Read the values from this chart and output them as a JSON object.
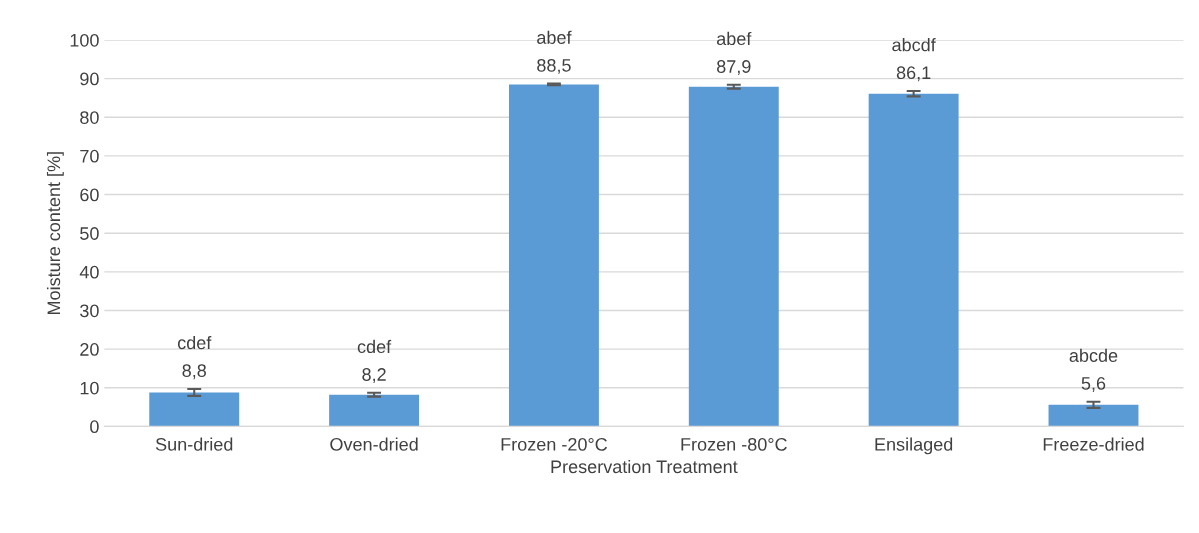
{
  "chart_data": {
    "type": "bar",
    "xlabel": "Preservation Treatment",
    "ylabel": "Moisture content [%]",
    "categories": [
      "Sun-dried",
      "Oven-dried",
      "Frozen -20°C",
      "Frozen -80°C",
      "Ensilaged",
      "Freeze-dried"
    ],
    "values": [
      8.8,
      8.2,
      88.5,
      87.9,
      86.1,
      5.6
    ],
    "value_labels": [
      "8,8",
      "8,2",
      "88,5",
      "87,9",
      "86,1",
      "5,6"
    ],
    "errors": [
      0.9,
      0.5,
      0.2,
      0.5,
      0.7,
      0.8
    ],
    "color": "#5b9bd5",
    "ylim": [
      0,
      100
    ],
    "yticks": [
      0,
      10,
      20,
      30,
      40,
      50,
      60,
      70,
      80,
      90,
      100
    ],
    "grid": "y",
    "annotations": [
      {
        "text": "cdef",
        "x": "Sun-dried",
        "y": 8.8
      },
      {
        "text": "cdef",
        "x": "Oven-dried",
        "y": 8.2
      },
      {
        "text": "abef",
        "x": "Frozen -20°C",
        "y": 88.5
      },
      {
        "text": "abef",
        "x": "Frozen -80°C",
        "y": 87.9
      },
      {
        "text": "abcdf",
        "x": "Ensilaged",
        "y": 86.1
      },
      {
        "text": "abcde",
        "x": "Freeze-dried",
        "y": 5.6
      }
    ]
  }
}
